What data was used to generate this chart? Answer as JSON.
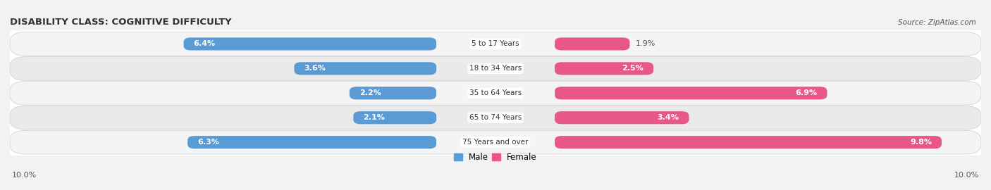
{
  "title": "DISABILITY CLASS: COGNITIVE DIFFICULTY",
  "source": "Source: ZipAtlas.com",
  "categories": [
    "5 to 17 Years",
    "18 to 34 Years",
    "35 to 64 Years",
    "65 to 74 Years",
    "75 Years and over"
  ],
  "male_values": [
    6.4,
    3.6,
    2.2,
    2.1,
    6.3
  ],
  "female_values": [
    1.9,
    2.5,
    6.9,
    3.4,
    9.8
  ],
  "max_value": 10.0,
  "male_color_dark": "#5b9bd5",
  "male_color_light": "#aacce8",
  "female_color_dark": "#e8578a",
  "female_color_light": "#f4aac3",
  "dark_label_color": "#555555",
  "row_bg_colors": [
    "#f0f0f0",
    "#e8e8e8",
    "#f0f0f0",
    "#e8e8e8",
    "#f0f0f0"
  ],
  "bar_height": 0.52,
  "title_fontsize": 9.5,
  "label_fontsize": 8,
  "tick_fontsize": 8,
  "legend_fontsize": 8.5,
  "axis_label_left": "10.0%",
  "axis_label_right": "10.0%",
  "white_label_threshold": 2.0
}
